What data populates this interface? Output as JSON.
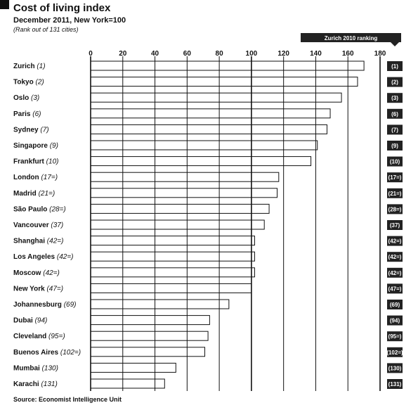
{
  "title": "Cost of living index",
  "subtitle": "December 2011, New York=100",
  "note": "(Rank out of 131 cities)",
  "source": "Source: Economist Intelligence Unit",
  "colors": {
    "bar_fill": "#ffffff",
    "bar_stroke": "#111111",
    "gridline": "#111111",
    "badge": "#222222"
  },
  "chart_data": {
    "type": "bar",
    "orientation": "horizontal",
    "xlim": [
      0,
      180
    ],
    "ticks": [
      0,
      20,
      40,
      60,
      80,
      100,
      120,
      140,
      160,
      180
    ],
    "annotation": "Zurich 2010 ranking",
    "categories": [
      {
        "name": "Zurich",
        "rank": "(1)",
        "value": 170,
        "badge": "(1)"
      },
      {
        "name": "Tokyo",
        "rank": "(2)",
        "value": 166,
        "badge": "(2)"
      },
      {
        "name": "Oslo",
        "rank": "(3)",
        "value": 156,
        "badge": "(3)"
      },
      {
        "name": "Paris",
        "rank": "(6)",
        "value": 149,
        "badge": "(6)"
      },
      {
        "name": "Sydney",
        "rank": "(7)",
        "value": 147,
        "badge": "(7)"
      },
      {
        "name": "Singapore",
        "rank": "(9)",
        "value": 141,
        "badge": "(9)"
      },
      {
        "name": "Frankfurt",
        "rank": "(10)",
        "value": 137,
        "badge": "(10)"
      },
      {
        "name": "London",
        "rank": "(17=)",
        "value": 117,
        "badge": "(17=)"
      },
      {
        "name": "Madrid",
        "rank": "(21=)",
        "value": 116,
        "badge": "(21=)"
      },
      {
        "name": "São Paulo",
        "rank": "(28=)",
        "value": 111,
        "badge": "(28=)"
      },
      {
        "name": "Vancouver",
        "rank": "(37)",
        "value": 108,
        "badge": "(37)"
      },
      {
        "name": "Shanghai",
        "rank": "(42=)",
        "value": 102,
        "badge": "(42=)"
      },
      {
        "name": "Los Angeles",
        "rank": "(42=)",
        "value": 102,
        "badge": "(42=)"
      },
      {
        "name": "Moscow",
        "rank": "(42=)",
        "value": 102,
        "badge": "(42=)"
      },
      {
        "name": "New York",
        "rank": "(47=)",
        "value": 100,
        "badge": "(47=)"
      },
      {
        "name": "Johannesburg",
        "rank": "(69)",
        "value": 86,
        "badge": "(69)"
      },
      {
        "name": "Dubai",
        "rank": "(94)",
        "value": 74,
        "badge": "(94)"
      },
      {
        "name": "Cleveland",
        "rank": "(95=)",
        "value": 73,
        "badge": "(95=)"
      },
      {
        "name": "Buenos Aires",
        "rank": "(102=)",
        "value": 71,
        "badge": "(102=)"
      },
      {
        "name": "Mumbai",
        "rank": "(130)",
        "value": 53,
        "badge": "(130)"
      },
      {
        "name": "Karachi",
        "rank": "(131)",
        "value": 46,
        "badge": "(131)"
      }
    ]
  }
}
